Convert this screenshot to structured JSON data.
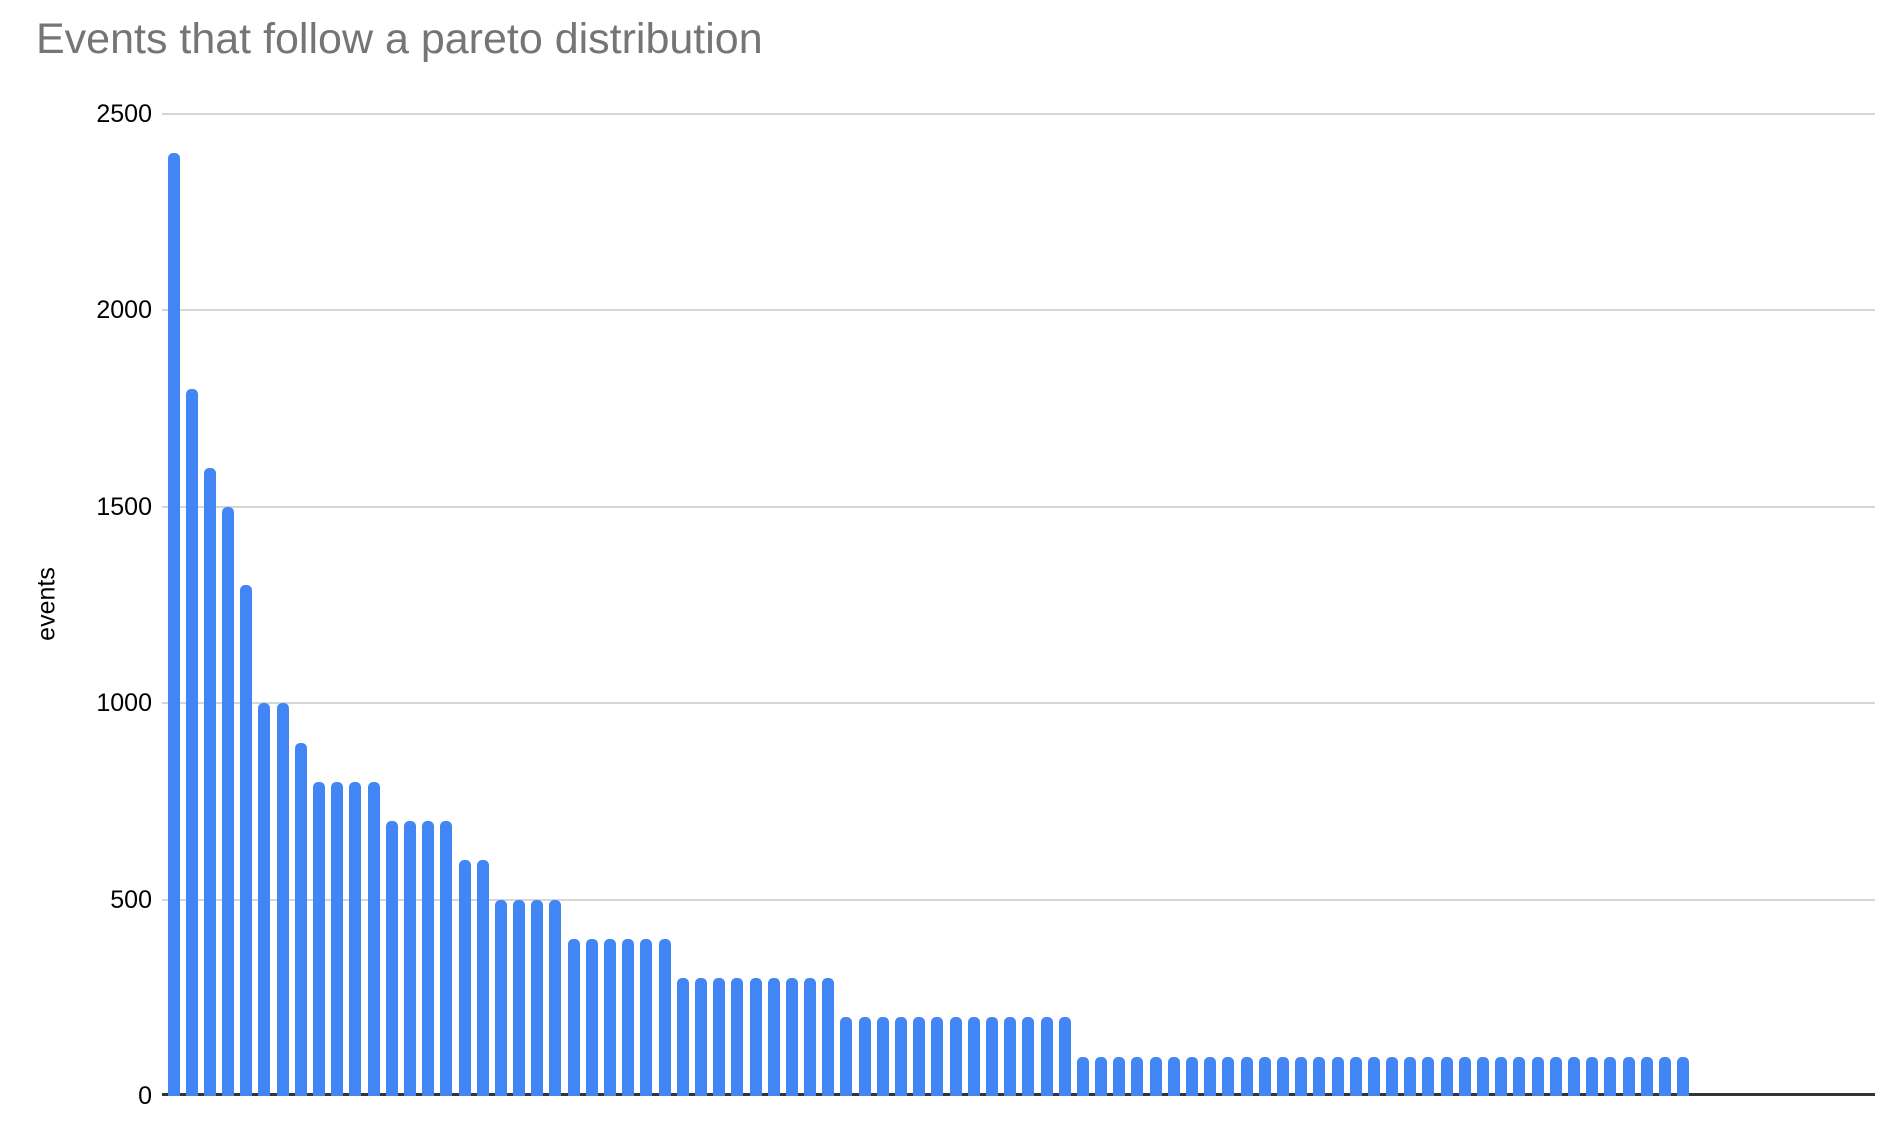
{
  "title": "Events that follow a pareto distribution",
  "chart_data": {
    "type": "bar",
    "title": "Events that follow a pareto distribution",
    "xlabel": "",
    "ylabel": "events",
    "ylim": [
      0,
      2500
    ],
    "y_ticks": [
      0,
      500,
      1000,
      1500,
      2000,
      2500
    ],
    "x_tick_labels": "none",
    "legend": "none",
    "grid": "horizontal",
    "bar_count": 84,
    "values": [
      2400,
      1800,
      1600,
      1500,
      1300,
      1000,
      1000,
      900,
      800,
      800,
      800,
      800,
      700,
      700,
      700,
      700,
      600,
      600,
      500,
      500,
      500,
      500,
      400,
      400,
      400,
      400,
      400,
      400,
      300,
      300,
      300,
      300,
      300,
      300,
      300,
      300,
      300,
      200,
      200,
      200,
      200,
      200,
      200,
      200,
      200,
      200,
      200,
      200,
      200,
      200,
      100,
      100,
      100,
      100,
      100,
      100,
      100,
      100,
      100,
      100,
      100,
      100,
      100,
      100,
      100,
      100,
      100,
      100,
      100,
      100,
      100,
      100,
      100,
      100,
      100,
      100,
      100,
      100,
      100,
      100,
      100,
      100,
      100,
      100
    ],
    "colors": {
      "bar": "#4285f4",
      "title_text": "#757575",
      "tick_text": "#000000",
      "gridline": "#d6d6d6",
      "axis_line": "#333333",
      "background": "#ffffff"
    }
  }
}
